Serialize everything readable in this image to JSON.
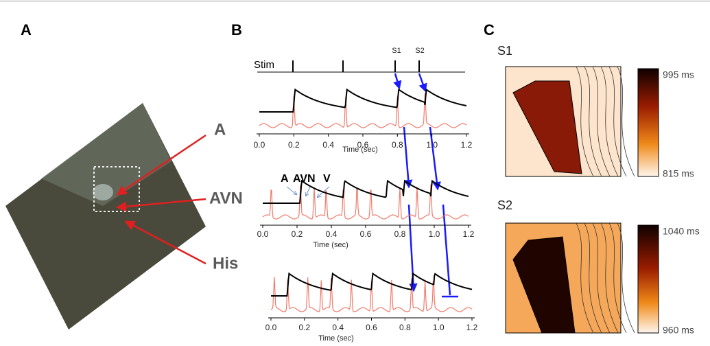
{
  "panel_labels": [
    "A",
    "B",
    "C"
  ],
  "panel_a": {
    "labels": [
      "A",
      "AVN",
      "His"
    ]
  },
  "panel_b": {
    "stim": "Stim",
    "stimuli": [
      "S1",
      "S2"
    ],
    "wave_labels": [
      "A",
      "AVN",
      "V"
    ],
    "traces": [
      {
        "ticks": [
          "0.0",
          "0.2",
          "0.4",
          "0.6",
          "0.8",
          "1.0",
          "1.2"
        ],
        "xlabel": "Time (sec)"
      },
      {
        "ticks": [
          "0.0",
          "0.2",
          "0.4",
          "0.6",
          "0.8",
          "1.0",
          "1.2"
        ],
        "xlabel": "Time (sec)"
      },
      {
        "ticks": [
          "0.0",
          "0.2",
          "0.4",
          "0.6",
          "0.8",
          "1.0",
          "1.2"
        ],
        "xlabel": "Time (sec)"
      }
    ]
  },
  "panel_c": {
    "maps": [
      {
        "title": "S1",
        "max": "995 ms",
        "min": "815 ms"
      },
      {
        "title": "S2",
        "max": "1040 ms",
        "min": "960 ms"
      }
    ]
  }
}
